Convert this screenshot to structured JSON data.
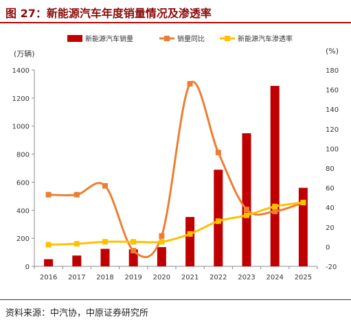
{
  "title": "图 27：新能源汽车年度销量情况及渗透率",
  "source": "资料来源：中汽协，中原证券研究所",
  "chart_data": {
    "type": "bar",
    "categories": [
      "2016",
      "2017",
      "2018",
      "2019",
      "2020",
      "2021",
      "2022",
      "2023",
      "2024",
      "2025"
    ],
    "left_unit": "(万辆)",
    "right_unit": "(%)",
    "y_left": {
      "min": 0,
      "max": 1400,
      "ticks": [
        0,
        200,
        400,
        600,
        800,
        1000,
        1200,
        1400
      ]
    },
    "y_right": {
      "min": -20,
      "max": 180,
      "ticks": [
        -20,
        0,
        20,
        40,
        60,
        80,
        100,
        120,
        140,
        160,
        180
      ]
    },
    "legend_position": "top",
    "series": [
      {
        "name": "新能源汽车销量",
        "kind": "bar",
        "axis": "left",
        "color": "#c00000",
        "values": [
          51,
          77,
          125,
          121,
          137,
          352,
          689,
          949,
          1287,
          560
        ]
      },
      {
        "name": "销量同比",
        "kind": "line",
        "axis": "right",
        "color": "#ed7d31",
        "values": [
          53,
          53,
          62,
          -4,
          11,
          166,
          96,
          38,
          36,
          45
        ]
      },
      {
        "name": "新能源汽车渗透率",
        "kind": "line",
        "axis": "right",
        "color": "#ffc000",
        "values": [
          2,
          3,
          5,
          5,
          5,
          13,
          26,
          32,
          41,
          45
        ]
      }
    ]
  }
}
